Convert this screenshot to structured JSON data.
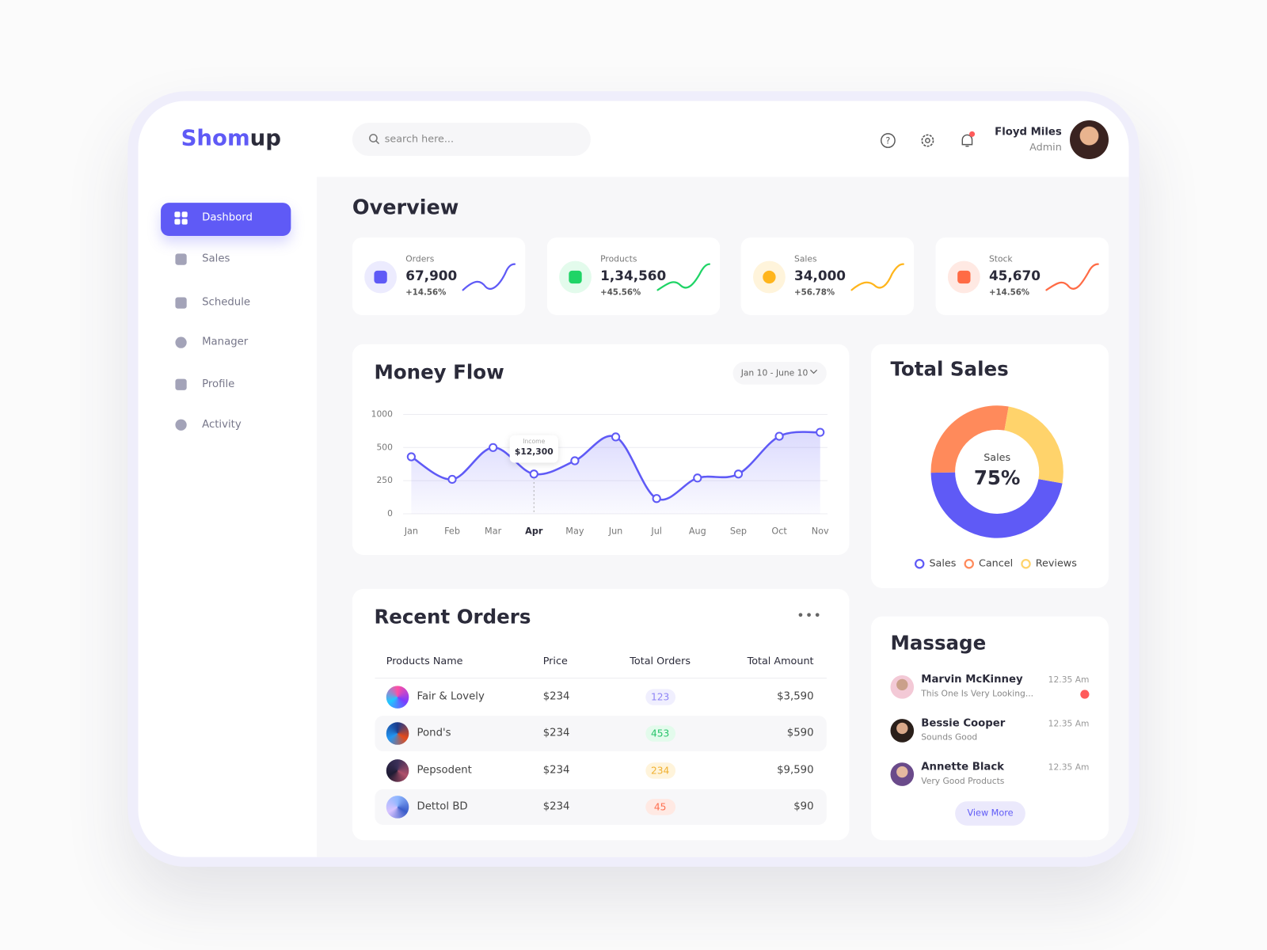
{
  "brand": {
    "first": "Shom",
    "second": "up"
  },
  "header": {
    "search_placeholder": "search here...",
    "user": {
      "name": "Floyd Miles",
      "role": "Admin"
    }
  },
  "sidebar": {
    "items": [
      "Dashbord",
      "Sales",
      "Schedule",
      "Manager",
      "Profile",
      "Activity"
    ]
  },
  "overview": {
    "title": "Overview",
    "cards": [
      {
        "label": "Orders",
        "value": "67,900",
        "change": "+14.56%"
      },
      {
        "label": "Products",
        "value": "1,34,560",
        "change": "+45.56%"
      },
      {
        "label": "Sales",
        "value": "34,000",
        "change": "+56.78%"
      },
      {
        "label": "Stock",
        "value": "45,670",
        "change": "+14.56%"
      }
    ]
  },
  "chart_data": [
    {
      "type": "line",
      "title": "Money Flow",
      "date_range": "Jan 10 - June 10",
      "categories": [
        "Jan",
        "Feb",
        "Mar",
        "Apr",
        "May",
        "Jun",
        "Jul",
        "Aug",
        "Sep",
        "Oct",
        "Nov"
      ],
      "series": [
        {
          "name": "Income",
          "color": "#5f5af6",
          "values": [
            430,
            260,
            500,
            300,
            400,
            660,
            115,
            270,
            300,
            670,
            730
          ]
        }
      ],
      "ylim": [
        0,
        1000
      ],
      "yticks": [
        0,
        250,
        500,
        1000
      ],
      "grid": true,
      "annotation": {
        "at": "Apr",
        "text": "$12,300"
      }
    },
    {
      "type": "donut",
      "title": "Total Sales",
      "center_label": "Sales",
      "center_value": "75%",
      "categories": [
        "Sales",
        "Cancel",
        "Reviews"
      ],
      "values": [
        47,
        28,
        25
      ],
      "colors": [
        "#5f5af6",
        "#ff8a5b",
        "#ffd36b"
      ],
      "legend": "bottom"
    }
  ],
  "recent_orders": {
    "title": "Recent Orders",
    "columns": [
      "Products Name",
      "Price",
      "Total Orders",
      "Total Amount"
    ],
    "rows": [
      [
        "Fair & Lovely",
        "$234",
        "123",
        "$3,590"
      ],
      [
        "Pond's",
        "$234",
        "453",
        "$590"
      ],
      [
        "Pepsodent",
        "$234",
        "234",
        "$9,590"
      ],
      [
        "Dettol BD",
        "$234",
        "45",
        "$90"
      ]
    ]
  },
  "messages": {
    "title": "Massage",
    "items": [
      {
        "name": "Marvin McKinney",
        "text": "This One Is Very Looking...",
        "time": "12.35 Am"
      },
      {
        "name": "Bessie Cooper",
        "text": "Sounds Good",
        "time": "12.35 Am"
      },
      {
        "name": "Annette Black",
        "text": "Very Good Products",
        "time": "12.35 Am"
      }
    ],
    "button": "View More"
  }
}
